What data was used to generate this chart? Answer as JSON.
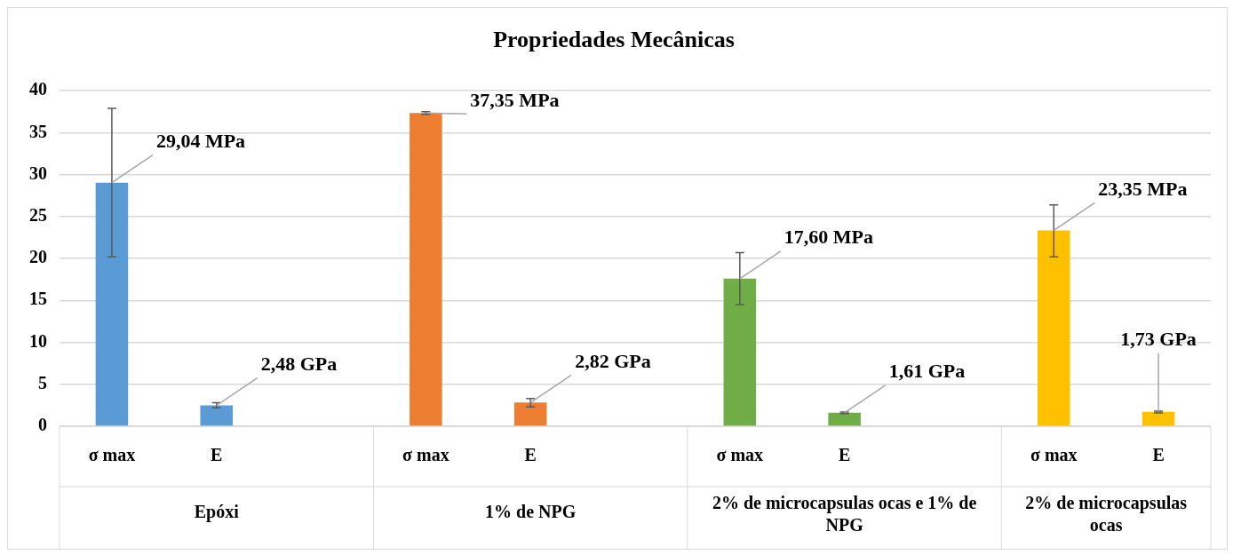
{
  "chart_data": {
    "type": "bar",
    "title": "Propriedades Mecânicas",
    "categories": [
      "σ max",
      "E",
      null,
      "σ max",
      "E",
      null,
      "σ max",
      "E",
      null,
      "σ max",
      "E"
    ],
    "values": [
      29.04,
      2.48,
      null,
      37.35,
      2.82,
      null,
      17.6,
      1.61,
      null,
      23.35,
      1.73
    ],
    "colors": [
      "#5b9bd5",
      "#5b9bd5",
      null,
      "#ed7d31",
      "#ed7d31",
      null,
      "#70ad47",
      "#70ad47",
      null,
      "#ffc000",
      "#ffc000"
    ],
    "errors": [
      [
        20.2,
        37.9
      ],
      [
        2.2,
        2.8
      ],
      null,
      [
        37.2,
        37.5
      ],
      [
        2.3,
        3.3
      ],
      null,
      [
        14.5,
        20.7
      ],
      [
        1.5,
        1.7
      ],
      null,
      [
        20.2,
        26.4
      ],
      [
        1.6,
        1.8
      ]
    ],
    "value_labels": [
      "29,04 MPa",
      "2,48 GPa",
      null,
      "37,35 MPa",
      "2,82 GPa",
      null,
      "17,60 MPa",
      "1,61 GPa",
      null,
      "23,35 MPa",
      "1,73 GPa"
    ],
    "annotations": [
      "Epóxi",
      "1% de NPG",
      "2% de microcapsulas ocas e 1% de NPG",
      "2% de microcapsulas ocas"
    ],
    "ylim": [
      0,
      40
    ],
    "yticks": [
      0,
      5,
      10,
      15,
      20,
      25,
      30,
      35,
      40
    ],
    "grid": "y",
    "legend": false
  }
}
